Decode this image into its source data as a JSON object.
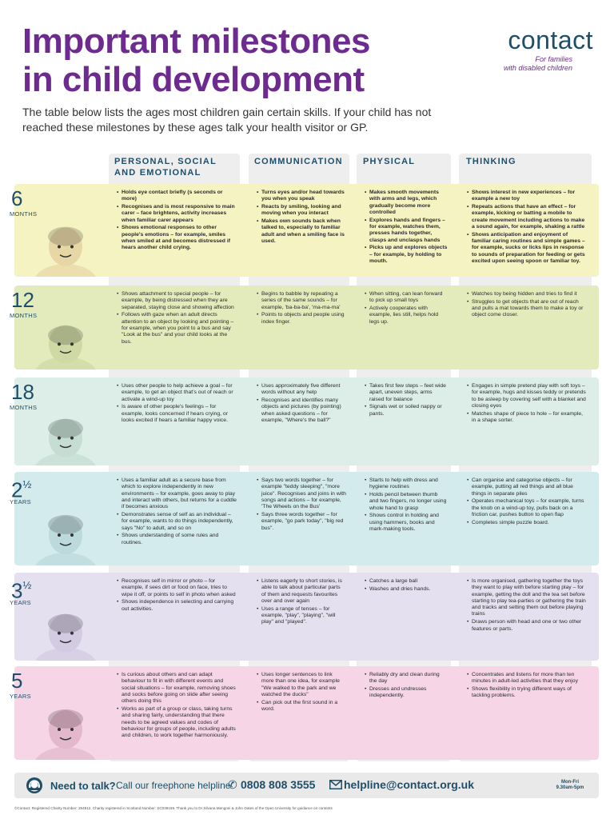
{
  "title_line1": "Important milestones",
  "title_line2": "in child development",
  "logo": {
    "word": "contact",
    "tagline1": "For families",
    "tagline2": "with disabled children"
  },
  "intro": "The table below lists the ages most children gain certain skills. If your child has not reached these milestones by these ages talk your health visitor or GP.",
  "columns": {
    "personal": "PERSONAL, SOCIAL AND EMOTIONAL",
    "communication": "COMMUNICATION",
    "physical": "PHYSICAL",
    "thinking": "THINKING"
  },
  "colors": {
    "purple": "#6d2b8f",
    "navy": "#1f4e69"
  },
  "rows": [
    {
      "age": "6",
      "frac": "",
      "unit": "MONTHS",
      "color": "#f6f3c2",
      "personal": [
        "Holds eye contact briefly (s seconds or more)",
        "Recognises and is most responsive to main carer – face brightens, activity increases when familiar carer appears",
        "Shows emotional responses to other people's emotions – for example, smiles when smiled at and becomes distressed if hears another child crying."
      ],
      "communication": [
        "Turns eyes and/or head towards you when you speak",
        "Reacts by smiling, looking and moving when you interact",
        "Makes own sounds back when talked to, especially to familiar adult and when a smiling face is used."
      ],
      "physical": [
        "Makes smooth movements with arms and legs, which gradually become more controlled",
        "Explores hands and fingers – for example, watches them, presses hands together, clasps and unclasps hands",
        "Picks up and explores objects – for example, by holding to mouth."
      ],
      "thinking": [
        "Shows interest in new experiences – for example a new toy",
        "Repeats actions that have an effect – for example, kicking or batting a mobile to create movement including actions to make a sound again, for example, shaking a rattle",
        "Shows anticipation and enjoyment of familiar caring routines and simple games – for example, sucks or licks lips in response to sounds of preparation for feeding or gets excited upon seeing spoon or familiar toy."
      ]
    },
    {
      "age": "12",
      "frac": "",
      "unit": "MONTHS",
      "color": "#e3ebbd",
      "personal": [
        "Shows attachment to special people – for example, by being distressed when they are separated, staying close and showing affection",
        "Follows with gaze when an adult directs attention to an object by looking and pointing – for example, when you point to a bus and say \"Look at the bus\" and your child looks at the bus."
      ],
      "communication": [
        "Begins to babble by repeating a series of the same sounds – for example, 'ba-ba-ba', 'ma-ma-ma'",
        "Points to objects and people using index finger."
      ],
      "physical": [
        "When sitting, can lean forward to pick up small toys",
        "Actively cooperates with example, lies still, helps hold legs up."
      ],
      "thinking": [
        "Watches toy being hidden and tries to find it",
        "Struggles to get objects that are out of reach and pulls a mat towards them to make a toy or object come closer."
      ]
    },
    {
      "age": "18",
      "frac": "",
      "unit": "MONTHS",
      "color": "#dceee7",
      "personal": [
        "Uses other people to help achieve a goal – for example, to get an object that's out of reach or activate a wind-up toy",
        "Is aware of other people's feelings – for example, looks concerned if hears crying, or looks excited if hears a familiar happy voice."
      ],
      "communication": [
        "Uses approximately five different words without any help",
        "Recognises and identifies many objects and pictures (by pointing) when asked questions – for example, \"Where's the ball?\""
      ],
      "physical": [
        "Takes first few steps – feet wide apart, uneven steps, arms raised for balance",
        "Signals wet or soiled nappy or pants."
      ],
      "thinking": [
        "Engages in simple pretend play with soft toys – for example, hugs and kisses teddy or pretends to be asleep by covering self with a blanket and closing eyes",
        "Matches shape of piece to hole – for example, in a shape sorter."
      ]
    },
    {
      "age": "2",
      "frac": "½",
      "unit": "YEARS",
      "color": "#d3ebed",
      "personal": [
        "Uses a familiar adult as a secure base from which to explore independently in new environments – for example, goes away to play and interact with others, but returns for a cuddle if becomes anxious",
        "Demonstrates sense of self as an individual – for example, wants to do things independently, says \"No\" to adult, and so on",
        "Shows understanding of some rules and routines."
      ],
      "communication": [
        "Says two words together – for example \"teddy sleeping\", \"more juice\". Recognises and joins in with songs and actions – for example, 'The Wheels on the Bus'",
        "Says three words together – for example, \"go park today\", \"big red bus\"."
      ],
      "physical": [
        "Starts to help with dress and hygiene routines",
        "Holds pencil between thumb and two fingers, no longer using whole hand to grasp",
        "Shows control in holding and using hammers, books and mark-making tools."
      ],
      "thinking": [
        "Can organise and categorise objects – for example, putting all red things and all blue things in separate piles",
        "Operates mechanical toys – for example, turns the knob on a wind-up toy, pulls back on a friction car, pushes button to open flap",
        "Completes simple puzzle board."
      ]
    },
    {
      "age": "3",
      "frac": "½",
      "unit": "YEARS",
      "color": "#e5e0ef",
      "personal": [
        "Recognises self in mirror or photo – for example, if sees dirt or food on face, tries to wipe it off, or points to self in photo when asked",
        "Shows independence in selecting and carrying out activities."
      ],
      "communication": [
        "Listens eagerly to short stories, is able to talk about particular parts of them and requests favourites over and over again",
        "Uses a range of tenses – for example, \"play\", \"playing\", \"will play\" and \"played\"."
      ],
      "physical": [
        "Catches a large ball",
        "Washes and dries hands."
      ],
      "thinking": [
        "Is more organised, gathering together the toys they want to play with before starting play – for example, getting the doll and the tea set before starting to play tea-parties or gathering the train and tracks and setting them out before playing trains",
        "Draws person with head and one or two other features or parts."
      ]
    },
    {
      "age": "5",
      "frac": "",
      "unit": "YEARS",
      "color": "#f6d6e6",
      "personal": [
        "Is curious about others and can adapt behaviour to fit in with different events and social situations – for example, removing shoes and socks before going on slide after seeing others doing this",
        "Works as part of a group or class, taking turns and sharing fairly, understanding that there needs to be agreed values and codes of behaviour for groups of people, including adults and children, to work together harmoniously."
      ],
      "communication": [
        "Uses longer sentences to link more than one idea, for example \"We walked to the park and we watched the ducks\"",
        "Can pick out the first sound in a word."
      ],
      "physical": [
        "Reliably dry and clean during the day",
        "Dresses and undresses independently."
      ],
      "thinking": [
        "Concentrates and listens for more than ten minutes in adult-led activities that they enjoy",
        "Shows flexibility in trying different ways of tackling problems."
      ]
    }
  ],
  "footer": {
    "need": "Need to talk?",
    "call": "Call our freephone helpline",
    "phone": "0808 808 3555",
    "email": "helpline@contact.org.uk",
    "days": "Mon-Fri",
    "hours": "9.30am-5pm"
  },
  "credit": "©Contact: Registered Charity Number: 284912. Charity registered in Scotland Number: SC039169. Thank you to Dr Silvana Mengoni & John Oates of the Open University for guidance on contents"
}
